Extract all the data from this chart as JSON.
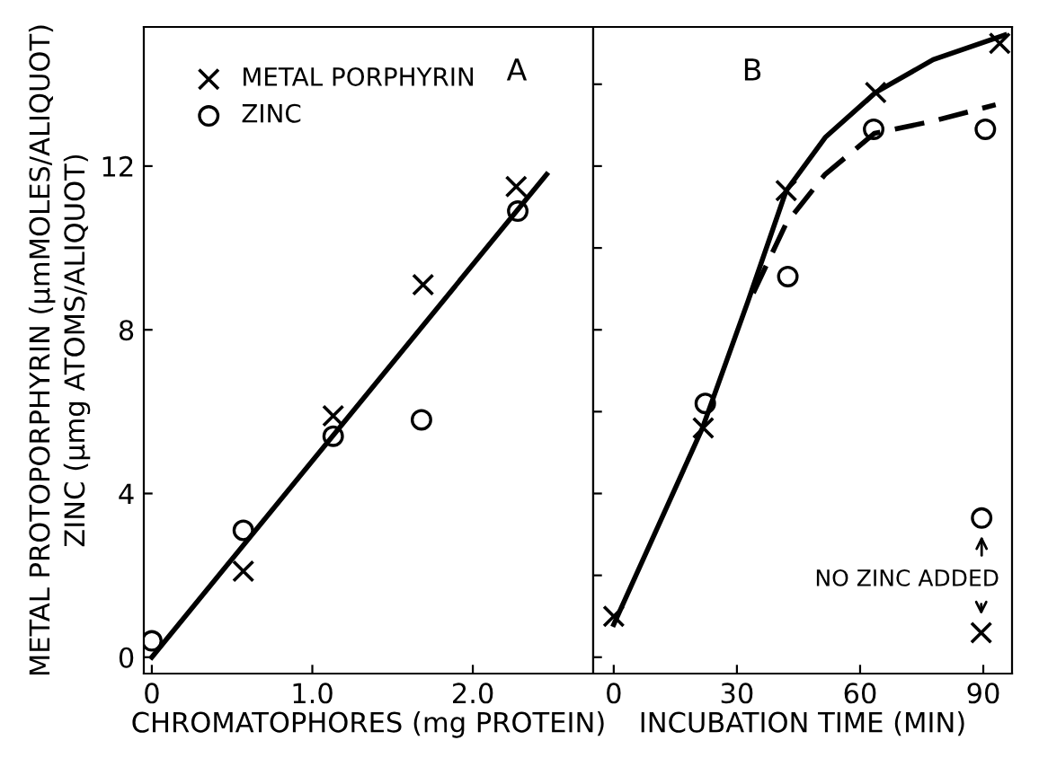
{
  "chart_data": [
    {
      "type": "scatter",
      "title": "A",
      "xlabel": "CHROMATOPHORES (mg PROTEIN)",
      "ylabel": "METAL PROTOPORPHYRIN (μmMOLES/ALIQUOT)\nZINC (μmg ATOMS/ALIQUOT)",
      "xlim": [
        -0.05,
        2.75
      ],
      "ylim": [
        -0.4,
        15.4
      ],
      "xticks": [
        0,
        {
          "value": 1,
          "label": "1.0"
        },
        {
          "value": 2,
          "label": "2.0"
        }
      ],
      "yticks": [
        0,
        4,
        8,
        12
      ],
      "grid": false,
      "legend": "top left",
      "series": [
        {
          "name": "METAL PORPHYRIN",
          "marker": "cross",
          "color": "#000000",
          "x": [
            0.57,
            1.13,
            1.69,
            2.27
          ],
          "values": [
            2.1,
            5.9,
            9.1,
            11.5
          ]
        },
        {
          "name": "ZINC",
          "marker": "circle",
          "color": "#000000",
          "x": [
            0,
            0.57,
            1.13,
            1.68,
            2.28
          ],
          "values": [
            0.4,
            3.1,
            5.4,
            5.8,
            10.9
          ]
        },
        {
          "type": "line",
          "line_style": "solid",
          "color": "#000000",
          "x": [
            0,
            2.46
          ],
          "values": [
            0,
            11.8
          ]
        }
      ]
    },
    {
      "type": "scatter",
      "title": "B",
      "xlabel": "INCUBATION TIME (MIN)",
      "xlim": [
        -5,
        97
      ],
      "ylim": [
        -0.4,
        15.4
      ],
      "xticks": [
        0,
        30,
        60,
        90
      ],
      "yticks": [
        {
          "value": 0,
          "label": null
        },
        {
          "value": 2,
          "label": null
        },
        {
          "value": 4,
          "label": null
        },
        {
          "value": 6,
          "label": null
        },
        {
          "value": 8,
          "label": null
        },
        {
          "value": 10,
          "label": null
        },
        {
          "value": 12,
          "label": null
        },
        {
          "value": 14,
          "label": null
        }
      ],
      "tick_labels": "x",
      "grid": false,
      "legend": false,
      "annotations": [
        "NO ZINC ADDED"
      ],
      "series": [
        {
          "marker": "cross",
          "color": "#000000",
          "x": [
            0,
            21.8,
            42,
            63.8,
            94,
            89.5
          ],
          "values": [
            1.0,
            5.6,
            11.4,
            13.8,
            15.0,
            0.6
          ]
        },
        {
          "marker": "circle",
          "color": "#000000",
          "x": [
            22.3,
            42.4,
            63.3,
            90.5,
            89.6
          ],
          "values": [
            6.2,
            9.3,
            12.9,
            12.9,
            3.4
          ]
        },
        {
          "type": "line",
          "line_style": "solid",
          "color": "#000000",
          "x": [
            0,
            21.6,
            32.7,
            42,
            51.5,
            63.8,
            77.8,
            95.2
          ],
          "values": [
            0.8,
            5.6,
            8.7,
            11.4,
            12.7,
            13.8,
            14.6,
            15.2
          ]
        },
        {
          "type": "line",
          "line_style": "dashed",
          "color": "#000000",
          "x": [
            34,
            42,
            51.5,
            63.5,
            77.8,
            93
          ],
          "values": [
            8.9,
            10.6,
            11.8,
            12.8,
            13.1,
            13.5
          ]
        }
      ]
    }
  ]
}
